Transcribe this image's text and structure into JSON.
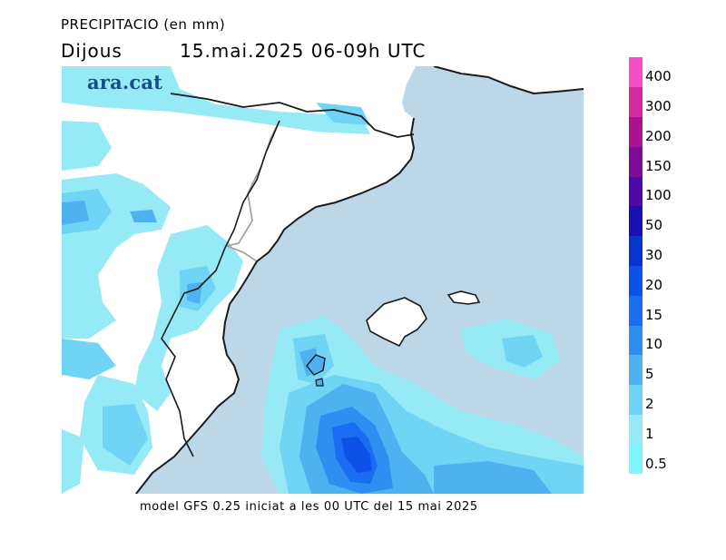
{
  "header": {
    "variable": "PRECIPITACIO (en mm)",
    "day": "Dijous",
    "period": "15.mai.2025 06-09h UTC"
  },
  "logo": {
    "text": "ara.cat",
    "color": "#1a4d8c"
  },
  "caption": "model GFS 0.25 iniciat a les 00 UTC del 15 mai 2025",
  "colors": {
    "sea": "#bcd8e8",
    "land": "#ffffff",
    "coast": "#1a1a1a",
    "border": "#9a9a9a"
  },
  "legend": {
    "thresholds": [
      "0.5",
      "1",
      "2",
      "5",
      "10",
      "15",
      "20",
      "30",
      "50",
      "100",
      "150",
      "200",
      "300",
      "400"
    ],
    "colors": [
      "#7ff5ff",
      "#96eaf5",
      "#70d4f4",
      "#4fb2f0",
      "#2e8ff0",
      "#1a6cf0",
      "#0c52e8",
      "#0535cc",
      "#1a0fb0",
      "#4e0aa6",
      "#7d0c96",
      "#ab128f",
      "#d8289f",
      "#fa4cc4"
    ]
  }
}
